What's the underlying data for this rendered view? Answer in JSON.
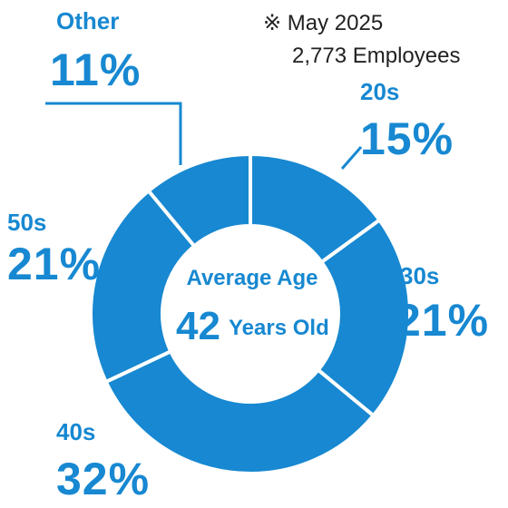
{
  "chart_data": {
    "type": "pie",
    "style": "donut",
    "colors": {
      "slice": "#1788d1",
      "separator": "#ffffff",
      "text": "#1788d1",
      "note": "#222222"
    },
    "slices": [
      {
        "label": "20s",
        "value": 15,
        "display": "15%"
      },
      {
        "label": "30s",
        "value": 21,
        "display": "21%"
      },
      {
        "label": "40s",
        "value": 32,
        "display": "32%"
      },
      {
        "label": "50s",
        "value": 21,
        "display": "21%"
      },
      {
        "label": "Other",
        "value": 11,
        "display": "11%"
      }
    ]
  },
  "note": {
    "line1": "※ May 2025",
    "line2": "2,773 Employees"
  },
  "center": {
    "title": "Average Age",
    "value": "42",
    "unit": "Years Old"
  }
}
